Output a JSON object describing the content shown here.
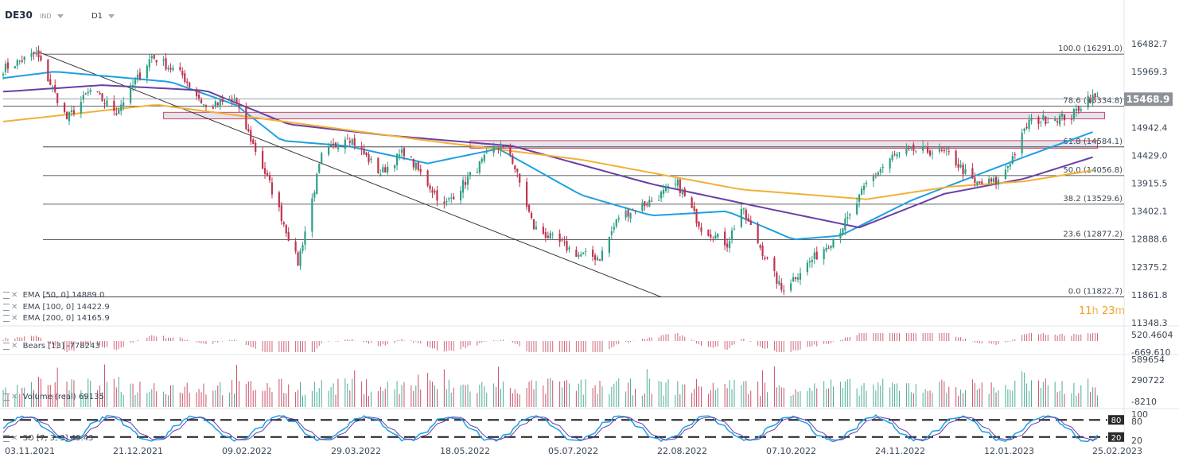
{
  "header": {
    "symbol": "DE30",
    "type_label": "IND",
    "timeframe": "D1"
  },
  "colors": {
    "up_candle": "#2e9e86",
    "down_candle": "#c0334d",
    "ema50": "#1ea0e0",
    "ema100": "#6a3ea6",
    "ema200": "#f2b036",
    "zone_fill": "#e4e3ee",
    "zone_border": "#d0445c",
    "price_tag": "#8d9299"
  },
  "price_axis": {
    "labels": [
      "16482.7",
      "15969.3",
      "14942.4",
      "14429.0",
      "13915.5",
      "13402.1",
      "12888.6",
      "12375.2",
      "11861.8",
      "11348.3"
    ],
    "current_price": "15468.9",
    "current_price_value": 15468.9,
    "ymin": 11348.3,
    "ymax": 16482.7
  },
  "date_axis": {
    "labels": [
      "03.11.2021",
      "21.12.2021",
      "09.02.2022",
      "29.03.2022",
      "18.05.2022",
      "05.07.2022",
      "22.08.2022",
      "07.10.2022",
      "24.11.2022",
      "12.01.2023",
      "25.02.2023"
    ]
  },
  "timer": {
    "hours": "11",
    "hours_unit": "h",
    "minutes": "23",
    "minutes_unit": "m"
  },
  "indicators": {
    "ema": [
      {
        "label": "EMA [50, 0]",
        "value": "14889.0"
      },
      {
        "label": "EMA [100, 0]",
        "value": "14422.9"
      },
      {
        "label": "EMA [200, 0]",
        "value": "14165.9"
      }
    ],
    "bears": {
      "label": "Bears [13]",
      "value": "-778243",
      "axis": [
        "520.4604",
        "-669.610"
      ]
    },
    "volume": {
      "label": "Volume (real)",
      "value": "69135",
      "axis": [
        "589654",
        "290722",
        "-8210"
      ]
    },
    "so": {
      "label": "SO [7, 3, 3]",
      "value": "49.43",
      "axis": [
        "100",
        "80",
        "20"
      ],
      "level_high": "80",
      "level_low": "20"
    }
  },
  "chart_data": {
    "type": "candlestick",
    "title": "",
    "ylim": [
      11348.3,
      16482.7
    ],
    "fibonacci_levels": [
      {
        "label": "100.0 (16291.0)",
        "value": 16291.0
      },
      {
        "label": "78.6 (15334.8)",
        "value": 15334.8
      },
      {
        "label": "61.8 (14584.1)",
        "value": 14584.1
      },
      {
        "label": "50.0 (14056.8)",
        "value": 14056.8
      },
      {
        "label": "38.2 (13529.6)",
        "value": 13529.6
      },
      {
        "label": "23.6 (12877.2)",
        "value": 12877.2
      },
      {
        "label": "0.0 (11822.7)",
        "value": 11822.7
      }
    ],
    "zones": [
      {
        "top": 15220,
        "bottom": 15100,
        "start_date": "2022-01-10",
        "end_date": "2023-02-13"
      },
      {
        "top": 14700,
        "bottom": 14560,
        "start_date": "2022-05-20",
        "end_date": "2023-02-10"
      }
    ],
    "trendline": {
      "start": {
        "date": "2021-11-18",
        "value": 16330
      },
      "end": {
        "date": "2022-08-09",
        "value": 11822.7
      }
    },
    "price_keypoints": [
      [
        "2021-11-03",
        16020
      ],
      [
        "2021-11-17",
        16300
      ],
      [
        "2021-11-30",
        15100
      ],
      [
        "2021-12-10",
        15620
      ],
      [
        "2021-12-21",
        15240
      ],
      [
        "2022-01-05",
        16250
      ],
      [
        "2022-01-18",
        15900
      ],
      [
        "2022-01-28",
        15300
      ],
      [
        "2022-02-09",
        15450
      ],
      [
        "2022-02-24",
        13900
      ],
      [
        "2022-03-08",
        12450
      ],
      [
        "2022-03-18",
        14400
      ],
      [
        "2022-03-29",
        14800
      ],
      [
        "2022-04-12",
        14100
      ],
      [
        "2022-04-22",
        14500
      ],
      [
        "2022-05-09",
        13500
      ],
      [
        "2022-05-18",
        13950
      ],
      [
        "2022-05-31",
        14600
      ],
      [
        "2022-06-06",
        14460
      ],
      [
        "2022-06-16",
        13100
      ],
      [
        "2022-07-05",
        12600
      ],
      [
        "2022-07-14",
        12550
      ],
      [
        "2022-07-22",
        13300
      ],
      [
        "2022-08-05",
        13600
      ],
      [
        "2022-08-16",
        13900
      ],
      [
        "2022-08-26",
        13100
      ],
      [
        "2022-09-06",
        12800
      ],
      [
        "2022-09-12",
        13450
      ],
      [
        "2022-09-29",
        11950
      ],
      [
        "2022-10-07",
        12300
      ],
      [
        "2022-10-19",
        12800
      ],
      [
        "2022-10-28",
        13300
      ],
      [
        "2022-11-04",
        13900
      ],
      [
        "2022-11-15",
        14400
      ],
      [
        "2022-11-24",
        14520
      ],
      [
        "2022-12-02",
        14500
      ],
      [
        "2022-12-09",
        14450
      ],
      [
        "2022-12-20",
        13900
      ],
      [
        "2022-12-30",
        13950
      ],
      [
        "2023-01-05",
        14400
      ],
      [
        "2023-01-12",
        15050
      ],
      [
        "2023-01-20",
        15100
      ],
      [
        "2023-01-30",
        15150
      ],
      [
        "2023-02-06",
        15500
      ],
      [
        "2023-02-10",
        15470
      ]
    ],
    "ema_series": {
      "EMA 50": [
        [
          "2021-11-03",
          15850
        ],
        [
          "2021-11-25",
          15970
        ],
        [
          "2022-01-13",
          15780
        ],
        [
          "2022-02-10",
          15350
        ],
        [
          "2022-03-01",
          14700
        ],
        [
          "2022-03-29",
          14600
        ],
        [
          "2022-05-02",
          14280
        ],
        [
          "2022-06-01",
          14550
        ],
        [
          "2022-07-06",
          13700
        ],
        [
          "2022-08-05",
          13320
        ],
        [
          "2022-09-06",
          13400
        ],
        [
          "2022-10-04",
          12880
        ],
        [
          "2022-10-24",
          12950
        ],
        [
          "2022-11-23",
          13600
        ],
        [
          "2023-01-10",
          14400
        ],
        [
          "2023-02-10",
          14889.0
        ]
      ],
      "EMA 100": [
        [
          "2021-11-03",
          15600
        ],
        [
          "2021-12-15",
          15720
        ],
        [
          "2022-01-28",
          15620
        ],
        [
          "2022-03-04",
          15000
        ],
        [
          "2022-04-14",
          14800
        ],
        [
          "2022-06-07",
          14600
        ],
        [
          "2022-08-05",
          13900
        ],
        [
          "2022-09-23",
          13450
        ],
        [
          "2022-11-01",
          13100
        ],
        [
          "2022-12-07",
          13720
        ],
        [
          "2023-01-10",
          14000
        ],
        [
          "2023-02-10",
          14422.9
        ]
      ],
      "EMA 200": [
        [
          "2021-11-03",
          15050
        ],
        [
          "2022-01-07",
          15360
        ],
        [
          "2022-03-04",
          15040
        ],
        [
          "2022-05-02",
          14700
        ],
        [
          "2022-07-06",
          14350
        ],
        [
          "2022-09-12",
          13800
        ],
        [
          "2022-11-04",
          13620
        ],
        [
          "2022-12-09",
          13850
        ],
        [
          "2023-01-10",
          13950
        ],
        [
          "2023-02-10",
          14165.9
        ]
      ]
    }
  }
}
